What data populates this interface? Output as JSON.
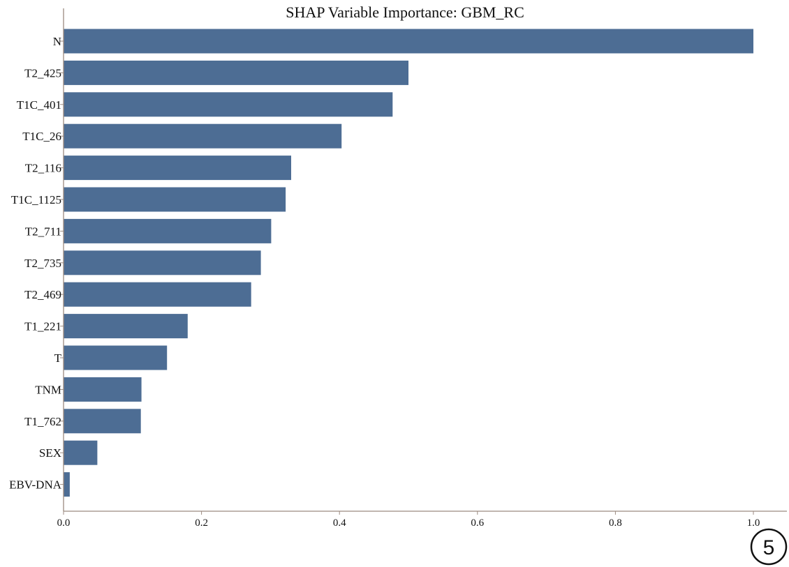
{
  "chart_data": {
    "type": "bar",
    "orientation": "horizontal",
    "title": "SHAP Variable Importance: GBM_RC",
    "xlabel": "",
    "ylabel": "",
    "categories": [
      "N",
      "T2_425",
      "T1C_401",
      "T1C_26",
      "T2_116",
      "T1C_1125",
      "T2_711",
      "T2_735",
      "T2_469",
      "T1_221",
      "T",
      "TNM",
      "T1_762",
      "SEX",
      "EBV-DNA"
    ],
    "values": [
      1.0,
      0.5,
      0.477,
      0.403,
      0.33,
      0.322,
      0.301,
      0.286,
      0.272,
      0.18,
      0.15,
      0.113,
      0.112,
      0.049,
      0.009
    ],
    "xlim": [
      0.0,
      1.0
    ],
    "x_ticks": [
      "0.0",
      "0.2",
      "0.4",
      "0.6",
      "0.8",
      "1.0"
    ],
    "grid": false,
    "legend": "none"
  },
  "badge": {
    "label": "5"
  },
  "colors": {
    "bar": "#4d6d94",
    "axis": "#9b8a80",
    "text": "#111111"
  }
}
